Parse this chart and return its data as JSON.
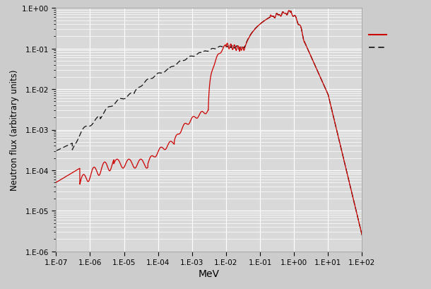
{
  "title": "",
  "xlabel": "MeV",
  "ylabel": "Neutron flux (arbitrary units)",
  "xlim": [
    1e-07,
    100.0
  ],
  "ylim": [
    1e-06,
    1.0
  ],
  "line1_color": "#cc0000",
  "line1_style": "-",
  "line1_label": "",
  "line2_color": "#111111",
  "line2_style": "--",
  "line2_label": "",
  "background_color": "#cccccc",
  "plot_bg_color": "#d9d9d9",
  "grid_color": "#ffffff",
  "legend_line1_color": "#cc0000",
  "legend_line2_color": "#111111"
}
